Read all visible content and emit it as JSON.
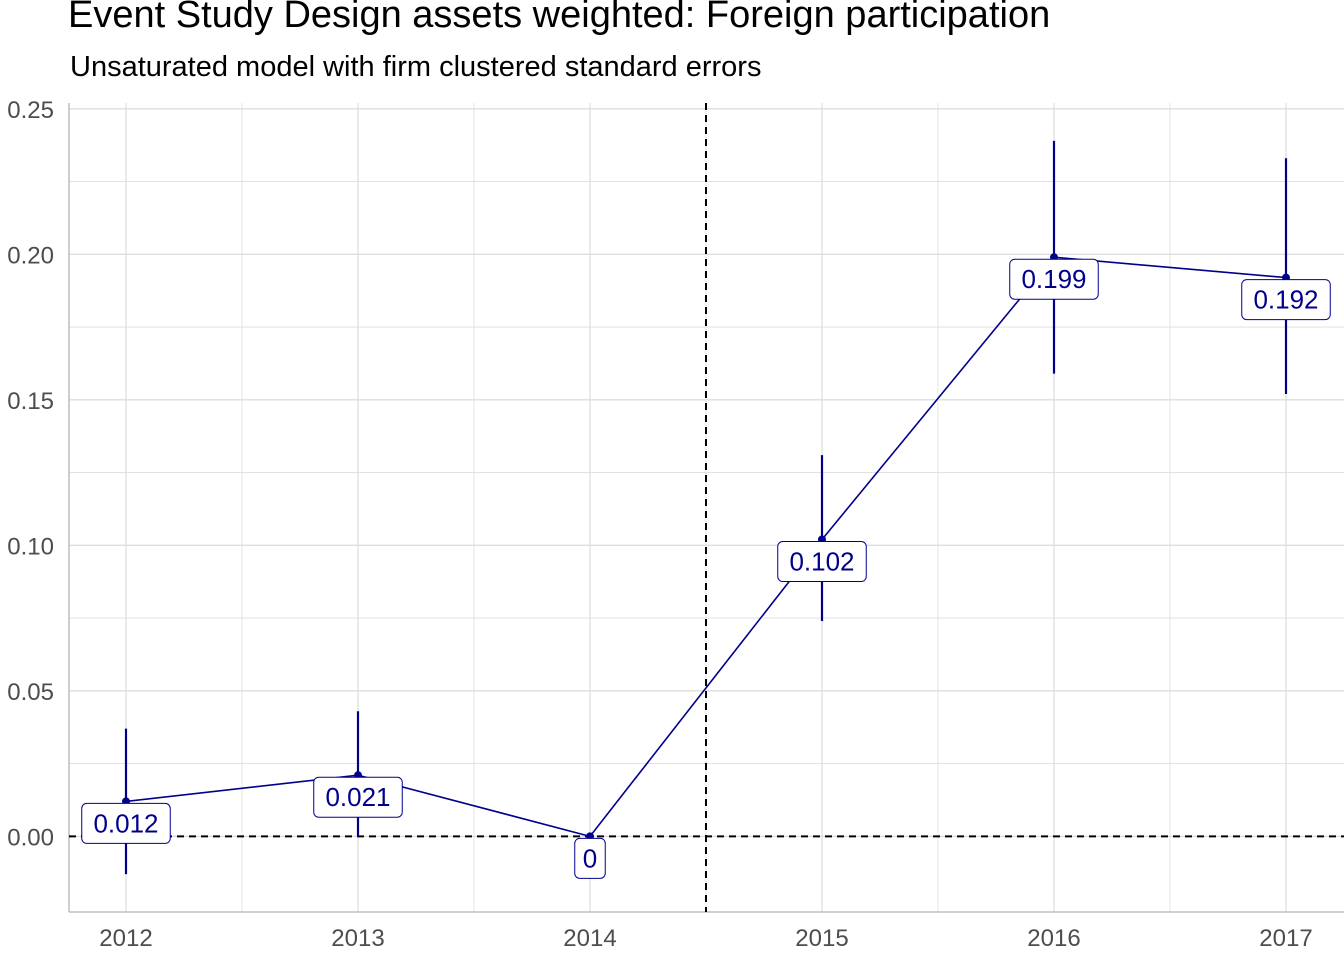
{
  "title": "Event Study Design assets weighted: Foreign participation",
  "subtitle": "Unsaturated model with firm clustered standard errors",
  "colors": {
    "series": "#00008B",
    "reference_line": "#000000",
    "grid": "#dedede",
    "tick_text": "#4d4d4d"
  },
  "chart_data": {
    "type": "line",
    "title": "Event Study Design assets weighted: Foreign participation",
    "subtitle": "Unsaturated model with firm clustered standard errors",
    "xlabel": "",
    "ylabel": "",
    "x": [
      "2012",
      "2013",
      "2014",
      "2015",
      "2016",
      "2017"
    ],
    "series": [
      {
        "values": [
          0.012,
          0.021,
          0,
          0.102,
          0.199,
          0.192
        ],
        "labels": [
          "0.012",
          "0.021",
          "0",
          "0.102",
          "0.199",
          "0.192"
        ],
        "ci_lower": [
          -0.013,
          0.0,
          0,
          0.074,
          0.159,
          0.152
        ],
        "ci_upper": [
          0.037,
          0.043,
          0,
          0.131,
          0.239,
          0.233
        ]
      }
    ],
    "ylim": [
      -0.026,
      0.252
    ],
    "y_ticks": [
      0.0,
      0.05,
      0.1,
      0.15,
      0.2,
      0.25
    ],
    "y_tick_labels": [
      "0.00",
      "0.05",
      "0.10",
      "0.15",
      "0.20",
      "0.25"
    ],
    "reference_lines": {
      "horizontal_y": 0,
      "vertical_between": [
        "2014",
        "2015"
      ]
    },
    "grid": true,
    "legend": "none"
  }
}
